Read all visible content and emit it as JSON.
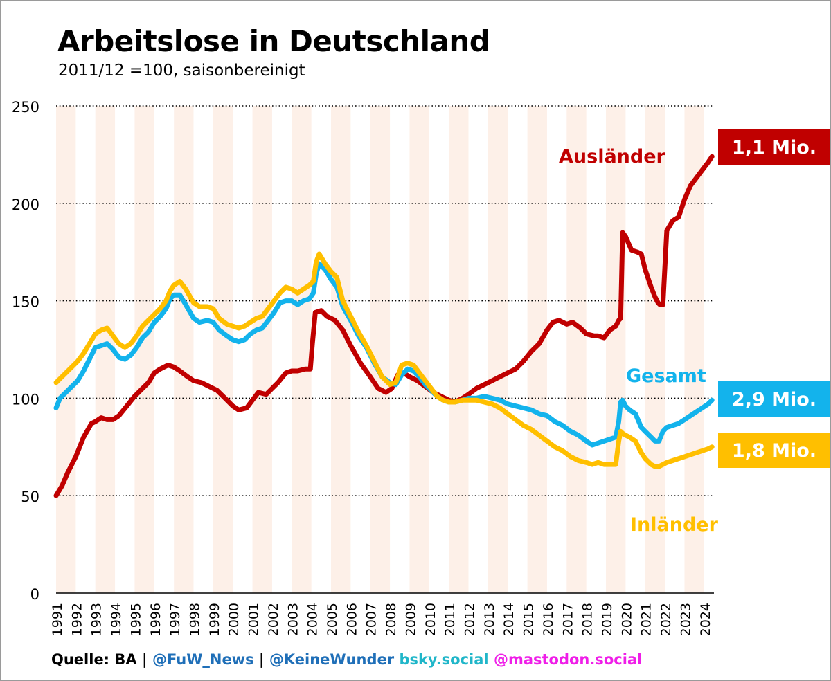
{
  "title": "Arbeitslose in Deutschland",
  "subtitle": "2011/12 =100, saisonbereinigt",
  "footer": {
    "source": "Quelle: BA",
    "sep1": " | ",
    "handle1": "@FuW_News",
    "sep2": " | ",
    "handle2": "@KeineWunder",
    "bsky": "bsky.social",
    "mastodon": "@mastodon.social"
  },
  "colors": {
    "auslaender": "#c00000",
    "gesamt": "#13b3ec",
    "inlaender": "#ffbf00",
    "stripe": "#fdf0e8",
    "handle": "#1f6fb8",
    "bsky": "#20b6c9",
    "mastodon": "#ef1ee8"
  },
  "chart_data": {
    "type": "line",
    "title": "Arbeitslose in Deutschland",
    "subtitle": "2011/12 =100, saisonbereinigt",
    "xlabel": "",
    "ylabel": "",
    "xlim": [
      1991,
      2024.5
    ],
    "ylim": [
      0,
      250
    ],
    "y_ticks": [
      0,
      50,
      100,
      150,
      200,
      250
    ],
    "x_ticks": [
      "1991",
      "1992",
      "1993",
      "1994",
      "1995",
      "1996",
      "1997",
      "1998",
      "1999",
      "2000",
      "2001",
      "2002",
      "2003",
      "2004",
      "2005",
      "2006",
      "2007",
      "2008",
      "2009",
      "2010",
      "2011",
      "2012",
      "2013",
      "2014",
      "2015",
      "2016",
      "2017",
      "2018",
      "2019",
      "2020",
      "2021",
      "2022",
      "2023",
      "2024"
    ],
    "grid": "horizontal dotted",
    "series": [
      {
        "name": "Ausländer",
        "label": "Ausländer",
        "end_value_label": "1,1 Mio.",
        "color": "#c00000",
        "x": [
          1991.0,
          1991.3,
          1991.6,
          1992.0,
          1992.4,
          1992.8,
          1993.0,
          1993.3,
          1993.6,
          1993.9,
          1994.2,
          1994.6,
          1995.0,
          1995.3,
          1995.7,
          1996.0,
          1996.3,
          1996.7,
          1997.0,
          1997.3,
          1997.7,
          1998.0,
          1998.4,
          1998.8,
          1999.2,
          1999.6,
          2000.0,
          2000.3,
          2000.7,
          2001.0,
          2001.3,
          2001.7,
          2002.0,
          2002.3,
          2002.7,
          2003.0,
          2003.3,
          2003.7,
          2003.95,
          2004.05,
          2004.2,
          2004.5,
          2004.8,
          2005.2,
          2005.6,
          2006.0,
          2006.5,
          2007.0,
          2007.4,
          2007.8,
          2008.1,
          2008.4,
          2008.7,
          2009.0,
          2009.4,
          2009.8,
          2010.2,
          2010.6,
          2011.0,
          2011.3,
          2011.7,
          2012.0,
          2012.4,
          2012.8,
          2013.2,
          2013.6,
          2014.0,
          2014.4,
          2014.8,
          2015.2,
          2015.6,
          2016.0,
          2016.3,
          2016.6,
          2017.0,
          2017.3,
          2017.7,
          2018.0,
          2018.4,
          2018.6,
          2018.9,
          2019.2,
          2019.5,
          2019.65,
          2019.75,
          2019.85,
          2020.0,
          2020.3,
          2020.6,
          2020.8,
          2021.0,
          2021.3,
          2021.5,
          2021.65,
          2021.75,
          2021.9,
          2022.1,
          2022.4,
          2022.7,
          2023.0,
          2023.3,
          2023.6,
          2023.9,
          2024.2,
          2024.4
        ],
        "values": [
          50,
          55,
          62,
          70,
          80,
          87,
          88,
          90,
          89,
          89,
          91,
          96,
          101,
          104,
          108,
          113,
          115,
          117,
          116,
          114,
          111,
          109,
          108,
          106,
          104,
          100,
          96,
          94,
          95,
          99,
          103,
          102,
          105,
          108,
          113,
          114,
          114,
          115,
          115,
          128,
          144,
          145,
          142,
          140,
          135,
          127,
          118,
          111,
          105,
          103,
          105,
          112,
          113,
          111,
          109,
          106,
          103,
          101,
          99,
          98,
          100,
          102,
          105,
          107,
          109,
          111,
          113,
          115,
          119,
          124,
          128,
          135,
          139,
          140,
          138,
          139,
          136,
          133,
          132,
          132,
          131,
          135,
          137,
          140,
          141,
          185,
          183,
          176,
          175,
          174,
          166,
          157,
          152,
          149,
          148,
          148,
          186,
          191,
          193,
          202,
          209,
          213,
          217,
          221,
          224
        ]
      },
      {
        "name": "Gesamt",
        "label": "Gesamt",
        "end_value_label": "2,9 Mio.",
        "color": "#13b3ec",
        "x": [
          1991.0,
          1991.2,
          1991.5,
          1991.8,
          1992.1,
          1992.4,
          1992.7,
          1993.0,
          1993.3,
          1993.6,
          1993.9,
          1994.2,
          1994.5,
          1994.8,
          1995.1,
          1995.4,
          1995.7,
          1996.0,
          1996.3,
          1996.6,
          1996.8,
          1997.0,
          1997.3,
          1997.6,
          1998.0,
          1998.3,
          1998.7,
          1999.0,
          1999.3,
          1999.7,
          2000.0,
          2000.3,
          2000.6,
          2000.9,
          2001.2,
          2001.5,
          2001.8,
          2002.1,
          2002.4,
          2002.7,
          2003.0,
          2003.3,
          2003.6,
          2003.9,
          2004.1,
          2004.25,
          2004.4,
          2004.7,
          2005.0,
          2005.3,
          2005.6,
          2006.0,
          2006.4,
          2006.8,
          2007.2,
          2007.6,
          2008.0,
          2008.3,
          2008.6,
          2008.9,
          2009.2,
          2009.5,
          2009.8,
          2010.1,
          2010.4,
          2010.7,
          2011.0,
          2011.3,
          2011.7,
          2012.0,
          2012.4,
          2012.8,
          2013.2,
          2013.6,
          2014.0,
          2014.4,
          2014.8,
          2015.2,
          2015.6,
          2016.0,
          2016.4,
          2016.8,
          2017.2,
          2017.6,
          2018.0,
          2018.3,
          2018.6,
          2018.9,
          2019.2,
          2019.5,
          2019.65,
          2019.75,
          2019.85,
          2020.0,
          2020.2,
          2020.5,
          2020.8,
          2021.0,
          2021.3,
          2021.5,
          2021.7,
          2021.9,
          2022.1,
          2022.4,
          2022.7,
          2023.0,
          2023.3,
          2023.6,
          2023.9,
          2024.2,
          2024.4
        ],
        "values": [
          95,
          100,
          103,
          106,
          109,
          114,
          120,
          126,
          127,
          128,
          125,
          121,
          120,
          122,
          126,
          131,
          134,
          139,
          142,
          146,
          151,
          153,
          153,
          148,
          141,
          139,
          140,
          139,
          135,
          132,
          130,
          129,
          130,
          133,
          135,
          136,
          140,
          144,
          149,
          150,
          150,
          148,
          150,
          151,
          154,
          164,
          169,
          166,
          161,
          157,
          147,
          140,
          132,
          126,
          118,
          111,
          108,
          107,
          112,
          115,
          114,
          111,
          107,
          104,
          101,
          99,
          98,
          98,
          99,
          100,
          100,
          101,
          100,
          99,
          97,
          96,
          95,
          94,
          92,
          91,
          88,
          86,
          83,
          81,
          78,
          76,
          77,
          78,
          79,
          80,
          88,
          98,
          99,
          96,
          94,
          92,
          85,
          83,
          80,
          78,
          78,
          83,
          85,
          86,
          87,
          89,
          91,
          93,
          95,
          97,
          99
        ]
      },
      {
        "name": "Inländer",
        "label": "Inländer",
        "end_value_label": "1,8 Mio.",
        "color": "#ffbf00",
        "x": [
          1991.0,
          1991.2,
          1991.5,
          1991.8,
          1992.1,
          1992.4,
          1992.7,
          1993.0,
          1993.3,
          1993.6,
          1993.9,
          1994.2,
          1994.5,
          1994.8,
          1995.1,
          1995.4,
          1995.7,
          1996.0,
          1996.3,
          1996.6,
          1996.8,
          1997.0,
          1997.3,
          1997.6,
          1998.0,
          1998.3,
          1998.7,
          1999.0,
          1999.3,
          1999.7,
          2000.0,
          2000.3,
          2000.6,
          2000.9,
          2001.2,
          2001.5,
          2001.8,
          2002.1,
          2002.4,
          2002.7,
          2003.0,
          2003.3,
          2003.6,
          2003.9,
          2004.1,
          2004.25,
          2004.4,
          2004.7,
          2005.0,
          2005.3,
          2005.6,
          2006.0,
          2006.4,
          2006.8,
          2007.2,
          2007.6,
          2008.0,
          2008.3,
          2008.6,
          2008.9,
          2009.2,
          2009.5,
          2009.8,
          2010.1,
          2010.4,
          2010.7,
          2011.0,
          2011.3,
          2011.7,
          2012.0,
          2012.4,
          2012.8,
          2013.2,
          2013.6,
          2014.0,
          2014.4,
          2014.8,
          2015.2,
          2015.6,
          2016.0,
          2016.4,
          2016.8,
          2017.2,
          2017.6,
          2018.0,
          2018.3,
          2018.6,
          2018.9,
          2019.2,
          2019.5,
          2019.65,
          2019.75,
          2019.85,
          2020.0,
          2020.2,
          2020.5,
          2020.8,
          2021.0,
          2021.3,
          2021.5,
          2021.7,
          2021.9,
          2022.1,
          2022.4,
          2022.7,
          2023.0,
          2023.3,
          2023.6,
          2023.9,
          2024.2,
          2024.4
        ],
        "values": [
          108,
          110,
          113,
          116,
          119,
          123,
          128,
          133,
          135,
          136,
          132,
          128,
          126,
          128,
          132,
          137,
          140,
          143,
          146,
          150,
          155,
          158,
          160,
          156,
          149,
          147,
          147,
          146,
          141,
          138,
          137,
          136,
          137,
          139,
          141,
          142,
          146,
          150,
          154,
          157,
          156,
          154,
          156,
          158,
          160,
          170,
          174,
          169,
          165,
          162,
          150,
          142,
          134,
          127,
          119,
          111,
          107,
          108,
          117,
          118,
          117,
          113,
          109,
          105,
          101,
          99,
          98,
          98,
          99,
          99,
          99,
          98,
          97,
          95,
          92,
          89,
          86,
          84,
          81,
          78,
          75,
          73,
          70,
          68,
          67,
          66,
          67,
          66,
          66,
          66,
          78,
          83,
          82,
          81,
          80,
          78,
          72,
          69,
          66,
          65,
          65,
          66,
          67,
          68,
          69,
          70,
          71,
          72,
          73,
          74,
          75
        ]
      }
    ]
  }
}
